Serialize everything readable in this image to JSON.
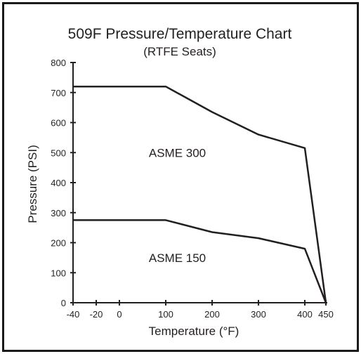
{
  "chart_data": {
    "type": "line",
    "title": "509F Pressure/Temperature Chart",
    "subtitle": "(RTFE Seats)",
    "xlabel": "Temperature (°F)",
    "ylabel": "Pressure (PSI)",
    "xlim": [
      -40,
      450
    ],
    "ylim": [
      0,
      800
    ],
    "x_ticks": [
      -40,
      -20,
      0,
      100,
      200,
      300,
      400,
      450
    ],
    "y_ticks": [
      0,
      100,
      200,
      300,
      400,
      500,
      600,
      700,
      800
    ],
    "grid": false,
    "series": [
      {
        "name": "ASME 300",
        "x": [
          -40,
          100,
          200,
          300,
          400,
          450
        ],
        "y": [
          720,
          720,
          635,
          560,
          515,
          0
        ]
      },
      {
        "name": "ASME 150",
        "x": [
          -40,
          100,
          200,
          300,
          400,
          450
        ],
        "y": [
          275,
          275,
          235,
          215,
          180,
          0
        ]
      }
    ],
    "annotations": [
      {
        "text": "ASME 300",
        "x": 125,
        "y": 500
      },
      {
        "text": "ASME 150",
        "x": 125,
        "y": 150
      }
    ],
    "colors": {
      "line": "#231f20",
      "frame": "#1a1a1a"
    }
  }
}
